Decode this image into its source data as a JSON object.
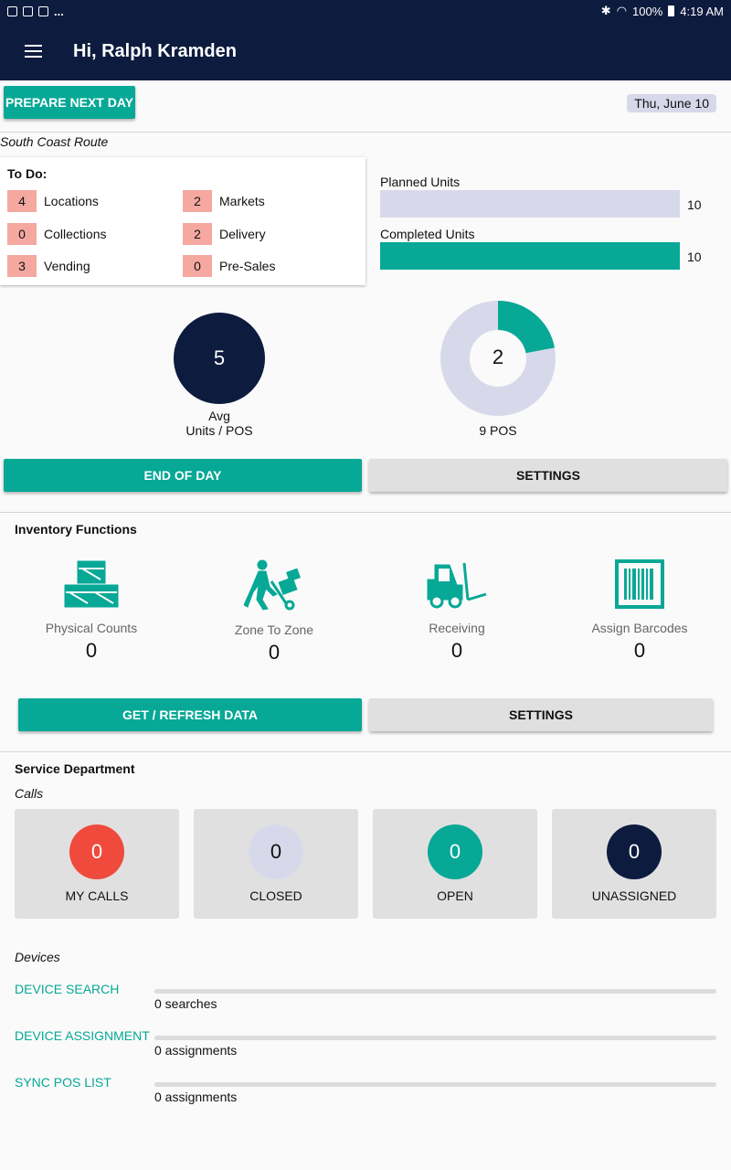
{
  "status_bar": {
    "battery": "100%",
    "time": "4:19 AM",
    "more": "..."
  },
  "app_bar": {
    "title": "Hi, Ralph Kramden"
  },
  "top": {
    "prepare_label": "PREPARE NEXT DAY",
    "date": "Thu, June 10",
    "route": "South Coast Route"
  },
  "todo": {
    "title": "To Do:",
    "items": [
      {
        "count": "4",
        "label": "Locations"
      },
      {
        "count": "2",
        "label": "Markets"
      },
      {
        "count": "0",
        "label": "Collections"
      },
      {
        "count": "2",
        "label": "Delivery"
      },
      {
        "count": "3",
        "label": "Vending"
      },
      {
        "count": "0",
        "label": "Pre-Sales"
      }
    ]
  },
  "units": {
    "planned_label": "Planned Units",
    "planned_value": "10",
    "completed_label": "Completed Units",
    "completed_value": "10",
    "completed_fraction": 1.0,
    "planned_color": "#d7d9ea",
    "completed_color": "#07a896"
  },
  "stats": {
    "avg_value": "5",
    "avg_label_1": "Avg",
    "avg_label_2": "Units / POS",
    "pos_value": "2",
    "pos_label": "9 POS",
    "pos_fraction": 0.22
  },
  "day_buttons": {
    "end_of_day": "END OF DAY",
    "settings": "SETTINGS"
  },
  "inventory": {
    "title": "Inventory Functions",
    "items": [
      {
        "label": "Physical Counts",
        "count": "0",
        "icon": "crates-icon"
      },
      {
        "label": "Zone To Zone",
        "count": "0",
        "icon": "hand-truck-icon"
      },
      {
        "label": "Receiving",
        "count": "0",
        "icon": "forklift-icon"
      },
      {
        "label": "Assign Barcodes",
        "count": "0",
        "icon": "barcode-icon"
      }
    ],
    "refresh_label": "GET / REFRESH DATA",
    "settings_label": "SETTINGS"
  },
  "service": {
    "title": "Service Department",
    "calls_label": "Calls",
    "calls": [
      {
        "label": "MY CALLS",
        "count": "0",
        "color": "#ef4a3c",
        "text_color": "#ffffff"
      },
      {
        "label": "CLOSED",
        "count": "0",
        "color": "#d7d9ea",
        "text_color": "#111111"
      },
      {
        "label": "OPEN",
        "count": "0",
        "color": "#07a896",
        "text_color": "#ffffff"
      },
      {
        "label": "UNASSIGNED",
        "count": "0",
        "color": "#0d1b3e",
        "text_color": "#ffffff"
      }
    ],
    "devices_label": "Devices",
    "devices": [
      {
        "label": "DEVICE SEARCH",
        "count": "0 searches"
      },
      {
        "label": "DEVICE ASSIGNMENT",
        "count": "0 assignments"
      },
      {
        "label": "SYNC POS LIST",
        "count": "0 assignments"
      }
    ]
  }
}
